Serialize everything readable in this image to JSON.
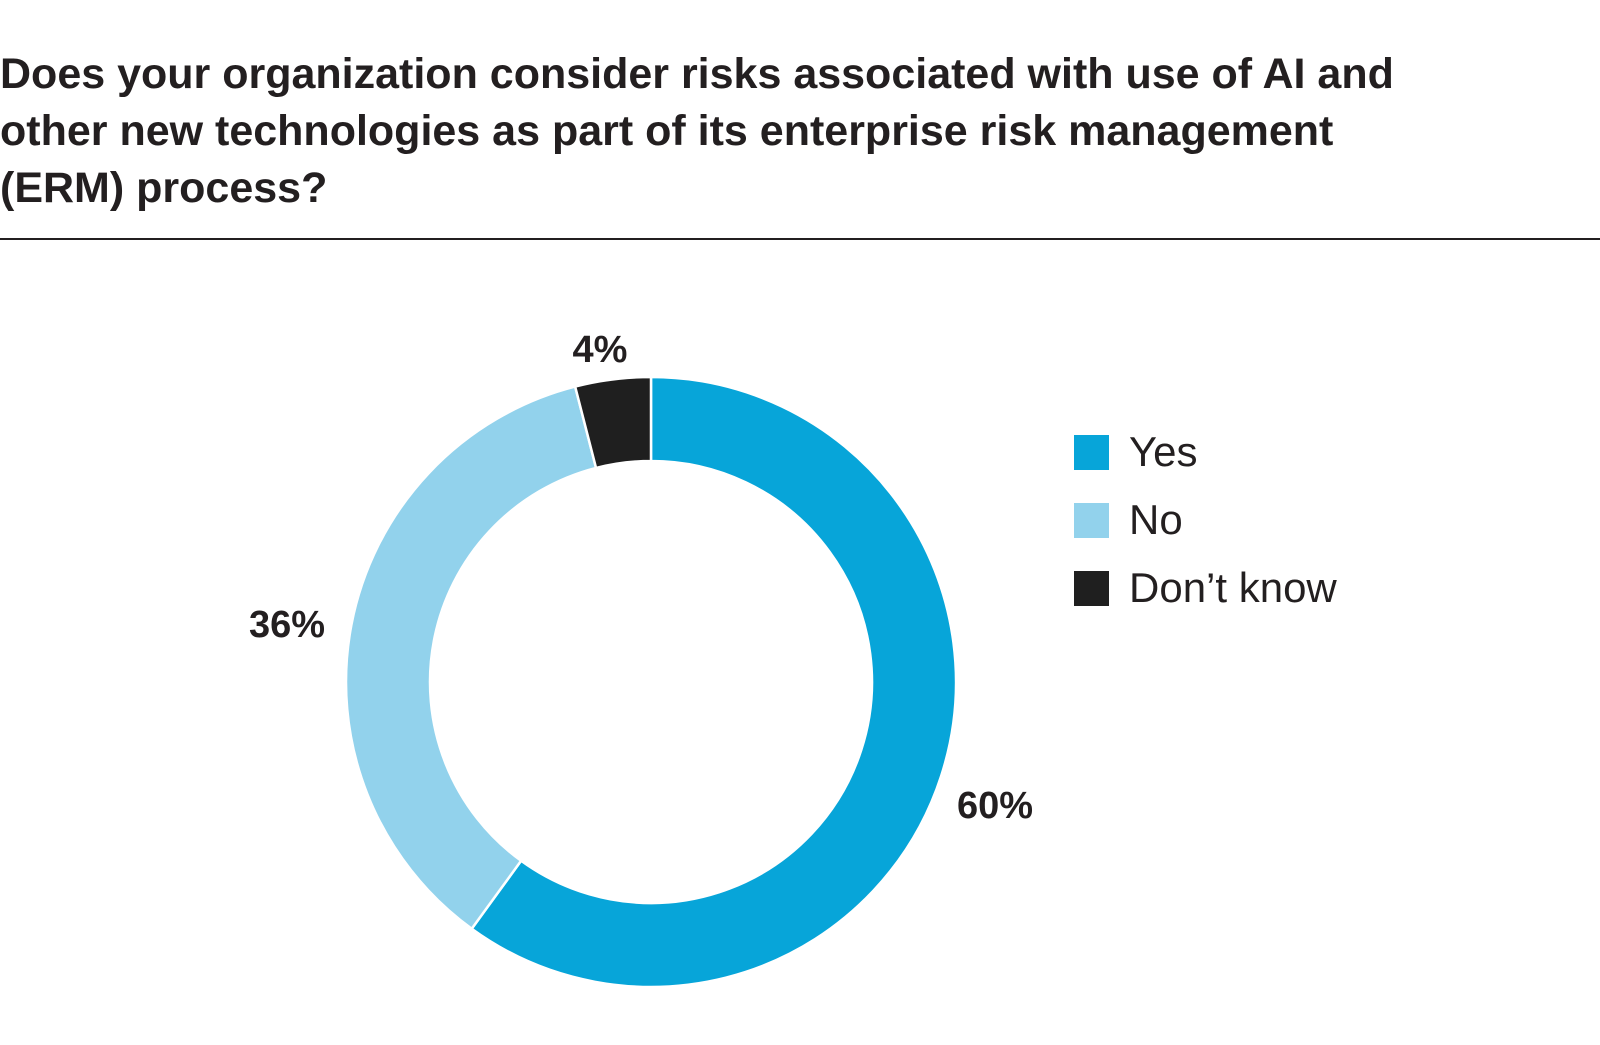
{
  "chart_data": {
    "type": "pie",
    "variant": "donut",
    "title": "Does your organization consider risks associated with use of AI and other new technologies as part of its enterprise risk management (ERM) process?",
    "categories": [
      "Yes",
      "No",
      "Don’t know"
    ],
    "values": [
      60,
      36,
      4
    ],
    "labels": [
      "60%",
      "36%",
      "4%"
    ],
    "colors": [
      "#07a5d9",
      "#92d2ec",
      "#1f1f1f"
    ],
    "legend_position": "right"
  }
}
